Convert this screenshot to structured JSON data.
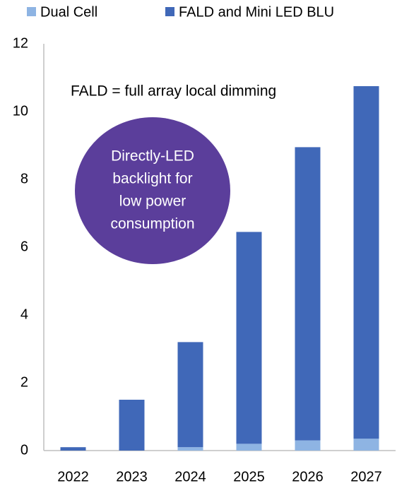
{
  "chart_data": {
    "type": "stacked_bar",
    "categories": [
      "2022",
      "2023",
      "2024",
      "2025",
      "2026",
      "2027"
    ],
    "series": [
      {
        "name": "Dual Cell",
        "color": "#8eb4e3",
        "values": [
          0,
          0,
          0.1,
          0.2,
          0.3,
          0.35
        ]
      },
      {
        "name": "FALD and Mini LED BLU",
        "color": "#4068b8",
        "values": [
          0.1,
          1.5,
          3.1,
          6.25,
          8.65,
          10.4
        ]
      }
    ],
    "ylim": [
      0,
      12
    ],
    "yticks": [
      0,
      2,
      4,
      6,
      8,
      10,
      12
    ],
    "grid": false,
    "legend": "top",
    "annotation": "FALD = full array local dimming",
    "callout": {
      "color": "#5b3e9b",
      "lines": [
        "Directly-LED",
        "backlight for",
        "low power",
        "consumption"
      ]
    }
  }
}
